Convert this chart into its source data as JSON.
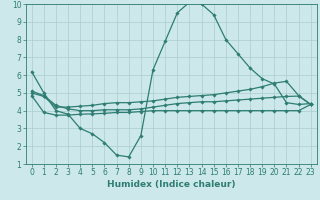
{
  "xlabel": "Humidex (Indice chaleur)",
  "background_color": "#cce8ea",
  "grid_color": "#aacccc",
  "line_color": "#2e7d72",
  "xlim": [
    -0.5,
    23.5
  ],
  "ylim": [
    1,
    10
  ],
  "xticks": [
    0,
    1,
    2,
    3,
    4,
    5,
    6,
    7,
    8,
    9,
    10,
    11,
    12,
    13,
    14,
    15,
    16,
    17,
    18,
    19,
    20,
    21,
    22,
    23
  ],
  "yticks": [
    1,
    2,
    3,
    4,
    5,
    6,
    7,
    8,
    9,
    10
  ],
  "line1_x": [
    0,
    1,
    2,
    3,
    4,
    5,
    6,
    7,
    8,
    9,
    10,
    11,
    12,
    13,
    14,
    15,
    16,
    17,
    18,
    19,
    20,
    21,
    22,
    23
  ],
  "line1_y": [
    6.2,
    5.0,
    4.0,
    3.8,
    3.0,
    2.7,
    2.2,
    1.5,
    1.4,
    2.6,
    6.3,
    7.9,
    9.5,
    10.1,
    10.0,
    9.4,
    8.0,
    7.2,
    6.4,
    5.8,
    5.5,
    4.45,
    4.35,
    4.4
  ],
  "line2_x": [
    0,
    1,
    2,
    3,
    4,
    5,
    6,
    7,
    8,
    9,
    10,
    11,
    12,
    13,
    14,
    15,
    16,
    17,
    18,
    19,
    20,
    21,
    22,
    23
  ],
  "line2_y": [
    5.0,
    4.8,
    4.2,
    4.2,
    4.25,
    4.3,
    4.4,
    4.45,
    4.45,
    4.5,
    4.55,
    4.65,
    4.75,
    4.8,
    4.85,
    4.9,
    5.0,
    5.1,
    5.2,
    5.35,
    5.55,
    5.65,
    4.85,
    4.35
  ],
  "line3_x": [
    0,
    1,
    2,
    3,
    4,
    5,
    6,
    7,
    8,
    9,
    10,
    11,
    12,
    13,
    14,
    15,
    16,
    17,
    18,
    19,
    20,
    21,
    22,
    23
  ],
  "line3_y": [
    5.1,
    4.85,
    4.3,
    4.1,
    4.0,
    4.0,
    4.05,
    4.05,
    4.05,
    4.1,
    4.2,
    4.3,
    4.4,
    4.45,
    4.5,
    4.5,
    4.55,
    4.6,
    4.65,
    4.7,
    4.75,
    4.8,
    4.82,
    4.35
  ],
  "line4_x": [
    0,
    1,
    2,
    3,
    4,
    5,
    6,
    7,
    8,
    9,
    10,
    11,
    12,
    13,
    14,
    15,
    16,
    17,
    18,
    19,
    20,
    21,
    22,
    23
  ],
  "line4_y": [
    4.85,
    3.9,
    3.75,
    3.75,
    3.8,
    3.82,
    3.85,
    3.9,
    3.9,
    3.95,
    4.0,
    4.0,
    4.0,
    4.0,
    4.0,
    4.0,
    4.0,
    4.0,
    4.0,
    4.0,
    4.0,
    4.0,
    4.0,
    4.35
  ],
  "marker": "D",
  "markersize": 1.8,
  "linewidth": 0.9,
  "xlabel_fontsize": 6.5,
  "tick_fontsize": 5.5
}
